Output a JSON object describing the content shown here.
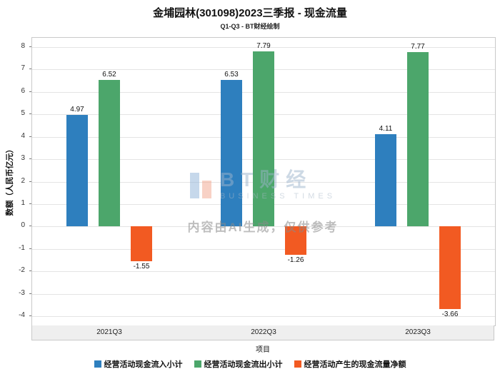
{
  "header": {
    "title": "金埔园林(301098)2023三季报 - 现金流量",
    "subtitle": "Q1-Q3 - BT财经绘制"
  },
  "watermark": {
    "brand": "BT财经",
    "brand_sub": "BUSINESS TIMES",
    "disclaimer": "内容由AI生成，仅供参考"
  },
  "chart_data": {
    "type": "bar",
    "title": "金埔园林(301098)2023三季报 - 现金流量",
    "subtitle": "Q1-Q3 - BT财经绘制",
    "categories": [
      "2021Q3",
      "2022Q3",
      "2023Q3"
    ],
    "series": [
      {
        "name": "经营活动现金流入小计",
        "color": "#2e7fbe",
        "values": [
          4.97,
          6.53,
          4.11
        ]
      },
      {
        "name": "经营活动现金流出小计",
        "color": "#4ca66b",
        "values": [
          6.52,
          7.79,
          7.77
        ]
      },
      {
        "name": "经营活动产生的现金流量净额",
        "color": "#f25a22",
        "values": [
          -1.55,
          -1.26,
          -3.66
        ]
      }
    ],
    "xlabel": "项目",
    "ylabel": "数额（人民币亿元）",
    "ylim": [
      -4,
      8
    ],
    "yticks": [
      8,
      7,
      6,
      5,
      4,
      3,
      2,
      1,
      0,
      -1,
      -2,
      -3,
      -4
    ],
    "grid": true,
    "legend_position": "bottom"
  }
}
